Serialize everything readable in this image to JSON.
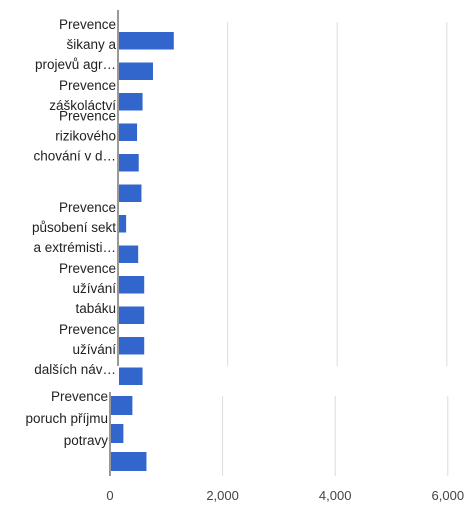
{
  "chart_data": {
    "type": "bar",
    "orientation": "horizontal",
    "panels": [
      {
        "categories": [
          {
            "label_lines": [
              "Prevence",
              "šikany a",
              "projevů agr…"
            ],
            "values": [
              1000,
              620
            ]
          },
          {
            "label_lines": [
              "Prevence",
              "záškoláctví"
            ],
            "values": [
              430
            ]
          },
          {
            "label_lines": [
              "Prevence",
              "rizikového",
              "chování v d…"
            ],
            "values": [
              330,
              360,
              410
            ]
          },
          {
            "label_lines": [
              "Prevence",
              "působení sekt",
              "a extrémisti…"
            ],
            "values": [
              130,
              350
            ]
          },
          {
            "label_lines": [
              "Prevence",
              "užívání",
              "tabáku"
            ],
            "values": [
              460,
              460
            ]
          },
          {
            "label_lines": [
              "Prevence",
              "užívání",
              "dalších náv…"
            ],
            "values": [
              460,
              430
            ]
          }
        ]
      },
      {
        "categories": [
          {
            "label_lines": [
              "Prevence",
              "poruch příjmu",
              "potravy"
            ],
            "values": [
              380,
              220,
              630
            ]
          }
        ]
      }
    ],
    "x_ticks": [
      "0",
      "2,000",
      "4,000",
      "6,000"
    ],
    "xlim": [
      0,
      6000
    ],
    "bar_color": "#3366cc",
    "grid": true,
    "legend": "none"
  }
}
